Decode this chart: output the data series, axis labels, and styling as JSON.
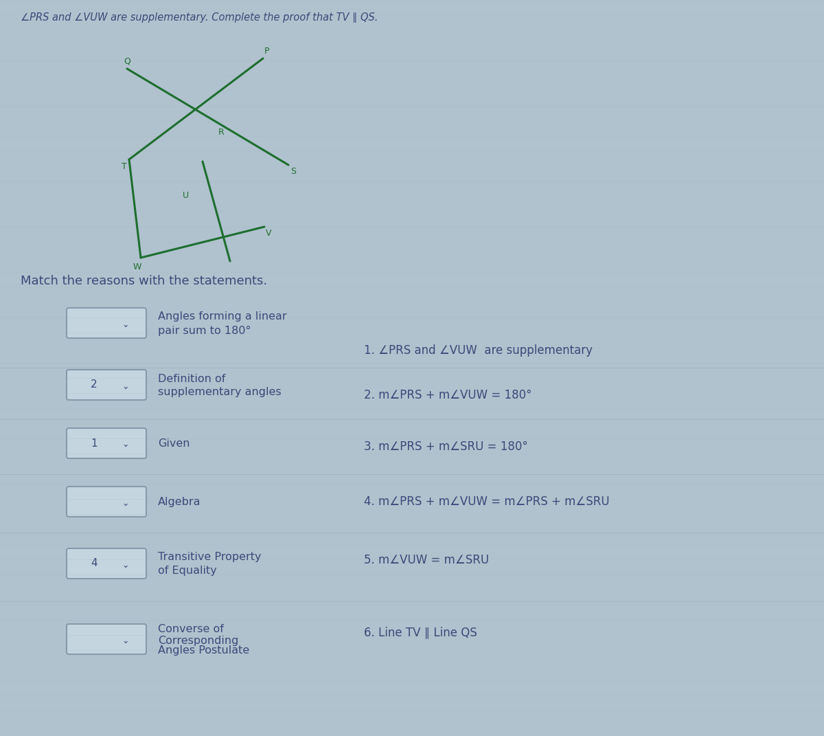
{
  "title": "∠PRS and ∠VUW are supplementary. Complete the proof that TV ∥ QS.",
  "match_instruction": "Match the reasons with the statements.",
  "background_color": "#b0c2ce",
  "reasons": [
    {
      "label": "",
      "text_line1": "Angles forming a linear",
      "text_line2": "pair sum to 180°"
    },
    {
      "label": "2",
      "text_line1": "Definition of",
      "text_line2": "supplementary angles"
    },
    {
      "label": "1",
      "text_line1": "Given",
      "text_line2": ""
    },
    {
      "label": "",
      "text_line1": "Algebra",
      "text_line2": ""
    },
    {
      "label": "4",
      "text_line1": "Transitive Property",
      "text_line2": "of Equality"
    },
    {
      "label": "",
      "text_line1": "Converse of",
      "text_line2": "Corresponding\nAngles Postulate"
    }
  ],
  "statements": [
    {
      "num": "1.",
      "text": " ∠PRS and ∠VUW  are supplementary"
    },
    {
      "num": "2.",
      "text": " m∠PRS + m∠VUW = 180°"
    },
    {
      "num": "3.",
      "text": " m∠PRS + m∠SRU = 180°"
    },
    {
      "num": "4.",
      "text": " m∠PRS + m∠VUW = m∠PRS + m∠SRU"
    },
    {
      "num": "5.",
      "text": " m∠VUW = m∠SRU"
    },
    {
      "num": "6.",
      "text": " Line TV ∥ Line QS"
    }
  ],
  "text_color": "#3a4a7a",
  "box_facecolor": "#c5d5e0",
  "box_edgecolor": "#8899aa",
  "diagram_color": "#1e6e2e",
  "grid_color": "#a0b5c0"
}
